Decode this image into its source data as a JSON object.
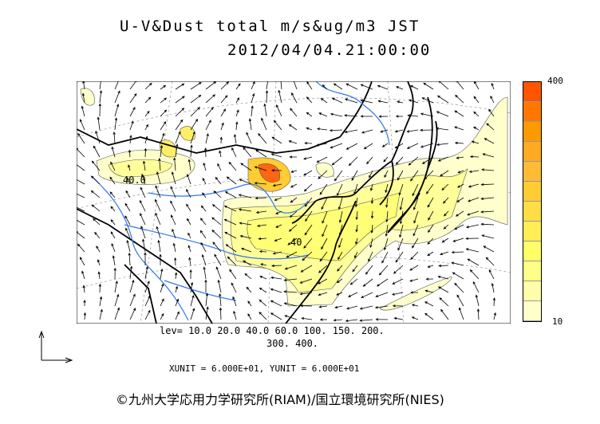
{
  "title": {
    "line1": "U-V&Dust total m/s&ug/m3 JST",
    "line2": "2012/04/04.21:00:00"
  },
  "scale": {
    "max_label": "400",
    "min_label": "10",
    "colors": [
      "#ff5500",
      "#ff7700",
      "#ff9900",
      "#ffaa22",
      "#ffbb33",
      "#ffcc33",
      "#ffdd44",
      "#ffee55",
      "#ffff66",
      "#ffff88",
      "#ffffaa",
      "#ffffcc"
    ]
  },
  "contour_labels": [
    "40.0",
    "40"
  ],
  "levels": {
    "line1": "lev= 10.0 20.0 40.0 60.0 100. 150. 200.",
    "line2": "300. 400."
  },
  "units": "XUNIT = 6.000E+01, YUNIT = 6.000E+01",
  "credit": "©九州大学応用力学研究所(RIAM)/国立環境研究所(NIES)",
  "colors": {
    "dust_light": "#ffffcc",
    "dust_mid": "#ffff88",
    "dust_high": "#ffcc33",
    "dust_peak": "#ff5500",
    "rivers": "#3377ee",
    "coast": "#000000"
  }
}
